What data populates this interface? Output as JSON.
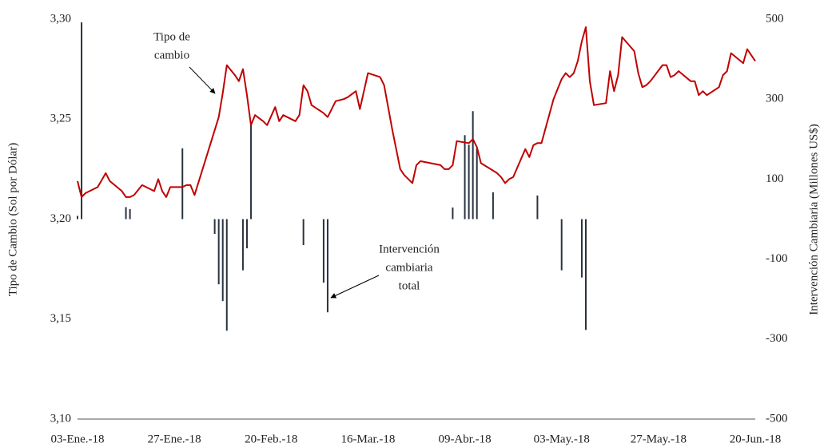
{
  "chart_data": {
    "type": "line-bar",
    "y_label": "Tipo de Cambio (Sol por Dólar)",
    "y2_label": "Intervención Cambiaria (Millones US$)",
    "annotations": [
      {
        "lines": [
          "Tipo de",
          "cambio"
        ]
      },
      {
        "lines": [
          "Intervención",
          "cambiaria",
          "total"
        ]
      }
    ],
    "xlim": [
      0,
      168
    ],
    "xticks": [
      {
        "value": 0,
        "label": "03-Ene.-18"
      },
      {
        "value": 24,
        "label": "27-Ene.-18"
      },
      {
        "value": 48,
        "label": "20-Feb.-18"
      },
      {
        "value": 72,
        "label": "16-Mar.-18"
      },
      {
        "value": 96,
        "label": "09-Abr.-18"
      },
      {
        "value": 120,
        "label": "03-May.-18"
      },
      {
        "value": 144,
        "label": "27-May.-18"
      },
      {
        "value": 168,
        "label": "20-Jun.-18"
      }
    ],
    "ylim": [
      3.1,
      3.3
    ],
    "yticks": [
      {
        "value": 3.1,
        "label": "3,10"
      },
      {
        "value": 3.15,
        "label": "3,15"
      },
      {
        "value": 3.2,
        "label": "3,20"
      },
      {
        "value": 3.25,
        "label": "3,25"
      },
      {
        "value": 3.3,
        "label": "3,30"
      }
    ],
    "y2lim": [
      -500,
      500
    ],
    "y2ticks": [
      -500,
      -300,
      -100,
      100,
      300,
      500
    ],
    "grid": false,
    "series": [
      {
        "type": "line",
        "color": "#c00000",
        "x": [
          0,
          1,
          2,
          4,
          5,
          7,
          8,
          11,
          12,
          13,
          14,
          16,
          18,
          19,
          20,
          21,
          22,
          23,
          26,
          27,
          28,
          29,
          33,
          35,
          36,
          37,
          39,
          40,
          41,
          42,
          43,
          44,
          46,
          47,
          49,
          50,
          51,
          54,
          55,
          56,
          57,
          58,
          61,
          62,
          64,
          66,
          67,
          69,
          70,
          72,
          75,
          76,
          78,
          80,
          81,
          83,
          84,
          85,
          90,
          91,
          92,
          93,
          94,
          97,
          98,
          99,
          100,
          104,
          105,
          106,
          107,
          108,
          111,
          112,
          113,
          114,
          115,
          118,
          120,
          121,
          122,
          123,
          124,
          125,
          126,
          127,
          128,
          131,
          132,
          133,
          134,
          135,
          138,
          139,
          140,
          141,
          142,
          145,
          146,
          147,
          148,
          149,
          152,
          153,
          154,
          155,
          156,
          159,
          160,
          161,
          162,
          165,
          166,
          168
        ],
        "values": [
          3.219,
          3.211,
          3.213,
          3.215,
          3.216,
          3.223,
          3.219,
          3.214,
          3.211,
          3.211,
          3.212,
          3.217,
          3.215,
          3.214,
          3.22,
          3.214,
          3.211,
          3.216,
          3.216,
          3.217,
          3.217,
          3.212,
          3.238,
          3.251,
          3.263,
          3.277,
          3.272,
          3.269,
          3.275,
          3.262,
          3.247,
          3.252,
          3.249,
          3.247,
          3.256,
          3.249,
          3.252,
          3.249,
          3.252,
          3.267,
          3.264,
          3.257,
          3.253,
          3.251,
          3.259,
          3.26,
          3.261,
          3.264,
          3.255,
          3.273,
          3.271,
          3.267,
          3.245,
          3.225,
          3.222,
          3.218,
          3.227,
          3.229,
          3.227,
          3.225,
          3.225,
          3.227,
          3.239,
          3.238,
          3.24,
          3.236,
          3.228,
          3.223,
          3.221,
          3.218,
          3.22,
          3.221,
          3.235,
          3.231,
          3.237,
          3.238,
          3.238,
          3.26,
          3.27,
          3.273,
          3.271,
          3.273,
          3.279,
          3.289,
          3.296,
          3.269,
          3.257,
          3.258,
          3.274,
          3.264,
          3.272,
          3.291,
          3.284,
          3.273,
          3.266,
          3.267,
          3.269,
          3.277,
          3.277,
          3.271,
          3.272,
          3.274,
          3.269,
          3.269,
          3.262,
          3.264,
          3.262,
          3.266,
          3.272,
          3.274,
          3.283,
          3.278,
          3.285,
          3.279
        ]
      },
      {
        "type": "bar",
        "axis": "y2",
        "color": "#2a3440",
        "x": [
          0,
          1,
          12,
          13,
          26,
          34,
          35,
          36,
          37,
          41,
          42,
          43,
          56,
          61,
          62,
          93,
          96,
          97,
          98,
          99,
          103,
          114,
          120,
          125,
          126
        ],
        "values": [
          8,
          492,
          30,
          25,
          177,
          -37,
          -163,
          -205,
          -279,
          -128,
          -73,
          239,
          -65,
          -159,
          -233,
          29,
          210,
          186,
          270,
          177,
          67,
          59,
          -128,
          -146,
          -277
        ]
      }
    ]
  }
}
